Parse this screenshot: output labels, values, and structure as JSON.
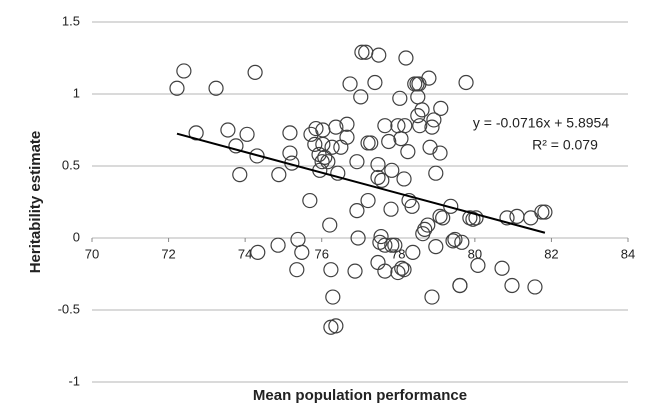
{
  "chart_data": {
    "type": "scatter",
    "x_label": "Mean population performance",
    "y_label": "Heritability estimate",
    "x": [
      72.22,
      72.4,
      72.72,
      73.24,
      73.55,
      73.86,
      74.05,
      74.26,
      74.31,
      73.76,
      74.33,
      74.86,
      74.88,
      75.17,
      75.17,
      75.22,
      75.35,
      75.38,
      75.48,
      75.69,
      75.72,
      75.85,
      75.93,
      75.82,
      75.95,
      76.03,
      76.01,
      76.08,
      76.03,
      76.16,
      76.27,
      76.37,
      76.42,
      76.5,
      76.21,
      76.24,
      76.29,
      76.37,
      76.24,
      76.66,
      76.66,
      76.74,
      76.87,
      76.92,
      76.95,
      77.02,
      76.92,
      77.05,
      77.15,
      77.21,
      77.21,
      77.28,
      77.39,
      77.47,
      77.47,
      77.47,
      77.49,
      77.52,
      77.57,
      77.55,
      77.65,
      77.65,
      77.65,
      77.75,
      77.81,
      77.83,
      77.83,
      77.91,
      77.99,
      77.99,
      78.04,
      78.07,
      78.09,
      78.15,
      78.15,
      78.17,
      78.2,
      78.28,
      78.25,
      78.36,
      78.38,
      78.43,
      78.49,
      78.51,
      78.51,
      78.54,
      78.56,
      78.62,
      78.64,
      78.69,
      78.77,
      78.8,
      78.83,
      78.88,
      78.93,
      78.98,
      78.88,
      78.98,
      79.09,
      79.11,
      79.09,
      79.16,
      79.37,
      79.43,
      79.48,
      79.61,
      79.61,
      79.66,
      79.77,
      79.87,
      79.95,
      80.03,
      80.08,
      80.71,
      80.84,
      80.97,
      81.1,
      81.46,
      81.57,
      81.75,
      81.83
    ],
    "values": [
      1.04,
      1.16,
      0.73,
      1.04,
      0.75,
      0.44,
      0.72,
      1.15,
      0.57,
      0.64,
      -0.1,
      -0.05,
      0.44,
      0.73,
      0.59,
      0.52,
      -0.22,
      -0.01,
      -0.1,
      0.26,
      0.72,
      0.76,
      0.58,
      0.65,
      0.47,
      0.65,
      0.53,
      0.56,
      0.75,
      0.53,
      0.63,
      0.77,
      0.45,
      0.63,
      0.09,
      -0.22,
      -0.41,
      -0.61,
      -0.62,
      0.7,
      0.79,
      1.07,
      -0.23,
      0.19,
      0,
      0.98,
      0.53,
      1.29,
      1.29,
      0.26,
      0.66,
      0.66,
      1.08,
      0.42,
      -0.17,
      0.51,
      1.27,
      -0.03,
      0.4,
      0.01,
      0.78,
      -0.23,
      -0.05,
      0.67,
      0.2,
      0.47,
      -0.05,
      -0.05,
      0.78,
      -0.24,
      0.97,
      0.69,
      -0.21,
      -0.22,
      0.41,
      0.78,
      1.25,
      0.26,
      0.6,
      0.22,
      -0.1,
      1.07,
      1.07,
      0.98,
      0.85,
      1.07,
      0.78,
      0.89,
      0.03,
      0.06,
      0.09,
      1.11,
      0.63,
      0.77,
      0.82,
      0.45,
      -0.41,
      -0.06,
      0.59,
      0.9,
      0.15,
      0.14,
      0.22,
      -0.02,
      -0.01,
      -0.33,
      -0.33,
      -0.03,
      1.08,
      0.14,
      0.13,
      0.14,
      -0.19,
      -0.21,
      0.14,
      -0.33,
      0.15,
      0.14,
      -0.34,
      0.18,
      0.18
    ],
    "color": "#404040",
    "xlim": [
      70,
      84
    ],
    "xticks": [
      70,
      72,
      74,
      76,
      78,
      80,
      82,
      84
    ],
    "ylim": [
      -1,
      1.5
    ],
    "yticks": [
      -1,
      -0.5,
      0,
      0.5,
      1,
      1.5
    ],
    "grid": true,
    "trendline": {
      "slope": -0.0716,
      "intercept": 5.8954,
      "equation": "y = -0.0716x + 5.8954",
      "r_squared": "R² = 0.079"
    }
  }
}
